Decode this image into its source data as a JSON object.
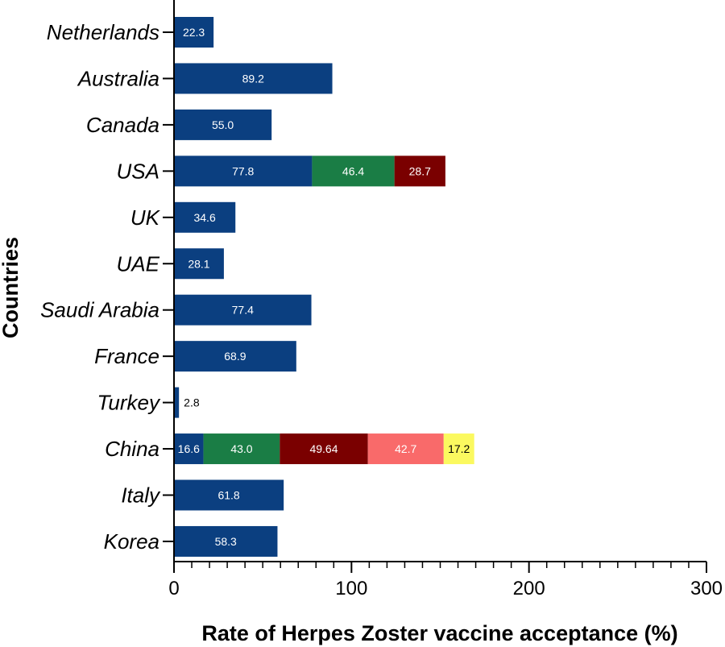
{
  "chart_data": {
    "type": "bar",
    "orientation": "horizontal",
    "stacked": true,
    "xlabel": "Rate of Herpes Zoster vaccine acceptance (%)",
    "ylabel": "Countries",
    "xlim": [
      0,
      300
    ],
    "xticks": [
      0,
      100,
      200,
      300
    ],
    "grid": false,
    "categories": [
      "Netherlands",
      "Australia",
      "Canada",
      "USA",
      "UK",
      "UAE",
      "Saudi Arabia",
      "France",
      "Turkey",
      "China",
      "Italy",
      "Korea"
    ],
    "bars": [
      {
        "category": "Netherlands",
        "segments": [
          {
            "value": 22.3,
            "label": "22.3",
            "color": "#0b3f80",
            "text_color": "#ffffff"
          }
        ]
      },
      {
        "category": "Australia",
        "segments": [
          {
            "value": 89.2,
            "label": "89.2",
            "color": "#0b3f80",
            "text_color": "#ffffff"
          }
        ]
      },
      {
        "category": "Canada",
        "segments": [
          {
            "value": 55.0,
            "label": "55.0",
            "color": "#0b3f80",
            "text_color": "#ffffff"
          }
        ]
      },
      {
        "category": "USA",
        "segments": [
          {
            "value": 77.8,
            "label": "77.8",
            "color": "#0b3f80",
            "text_color": "#ffffff"
          },
          {
            "value": 46.4,
            "label": "46.4",
            "color": "#1a7d45",
            "text_color": "#ffffff"
          },
          {
            "value": 28.7,
            "label": "28.7",
            "color": "#7a0000",
            "text_color": "#ffffff"
          }
        ]
      },
      {
        "category": "UK",
        "segments": [
          {
            "value": 34.6,
            "label": "34.6",
            "color": "#0b3f80",
            "text_color": "#ffffff"
          }
        ]
      },
      {
        "category": "UAE",
        "segments": [
          {
            "value": 28.1,
            "label": "28.1",
            "color": "#0b3f80",
            "text_color": "#ffffff"
          }
        ]
      },
      {
        "category": "Saudi Arabia",
        "segments": [
          {
            "value": 77.4,
            "label": "77.4",
            "color": "#0b3f80",
            "text_color": "#ffffff"
          }
        ]
      },
      {
        "category": "France",
        "segments": [
          {
            "value": 68.9,
            "label": "68.9",
            "color": "#0b3f80",
            "text_color": "#ffffff"
          }
        ]
      },
      {
        "category": "Turkey",
        "segments": [
          {
            "value": 2.8,
            "label": "2.8",
            "color": "#0b3f80",
            "text_color": "#000000",
            "label_outside": true
          }
        ]
      },
      {
        "category": "China",
        "segments": [
          {
            "value": 16.6,
            "label": "16.6",
            "color": "#0b3f80",
            "text_color": "#ffffff"
          },
          {
            "value": 43.0,
            "label": "43.0",
            "color": "#1a7d45",
            "text_color": "#ffffff"
          },
          {
            "value": 49.64,
            "label": "49.64",
            "color": "#7a0000",
            "text_color": "#ffffff"
          },
          {
            "value": 42.7,
            "label": "42.7",
            "color": "#f96a6a",
            "text_color": "#ffffff"
          },
          {
            "value": 17.2,
            "label": "17.2",
            "color": "#fbf95f",
            "text_color": "#000000"
          }
        ]
      },
      {
        "category": "Italy",
        "segments": [
          {
            "value": 61.8,
            "label": "61.8",
            "color": "#0b3f80",
            "text_color": "#ffffff"
          }
        ]
      },
      {
        "category": "Korea",
        "segments": [
          {
            "value": 58.3,
            "label": "58.3",
            "color": "#0b3f80",
            "text_color": "#ffffff"
          }
        ]
      }
    ]
  }
}
